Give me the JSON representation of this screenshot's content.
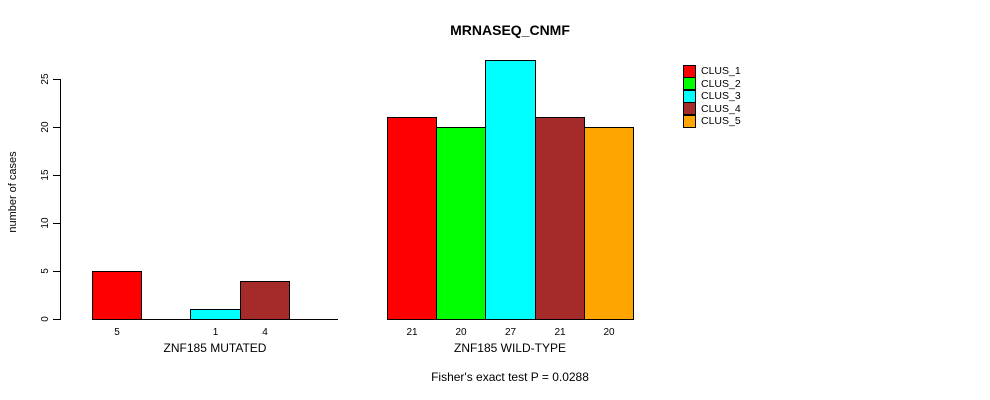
{
  "title": "MRNASEQ_CNMF",
  "caption": "Fisher's exact test P = 0.0288",
  "y_axis": {
    "label": "number of cases",
    "ticks": [
      0,
      5,
      10,
      15,
      20,
      25
    ]
  },
  "legend": {
    "items": [
      {
        "label": "CLUS_1",
        "color": "#ff0000"
      },
      {
        "label": "CLUS_2",
        "color": "#00ff00"
      },
      {
        "label": "CLUS_3",
        "color": "#00ffff"
      },
      {
        "label": "CLUS_4",
        "color": "#a52a2a"
      },
      {
        "label": "CLUS_5",
        "color": "#ffa500"
      }
    ]
  },
  "chart_data": {
    "type": "bar",
    "title": "MRNASEQ_CNMF",
    "ylabel": "number of cases",
    "ylim": [
      0,
      27
    ],
    "yticks": [
      0,
      5,
      10,
      15,
      20,
      25
    ],
    "grid": false,
    "legend_position": "right",
    "categories": [
      "CLUS_1",
      "CLUS_2",
      "CLUS_3",
      "CLUS_4",
      "CLUS_5"
    ],
    "colors": [
      "#ff0000",
      "#00ff00",
      "#00ffff",
      "#a52a2a",
      "#ffa500"
    ],
    "panels": [
      {
        "xlabel": "ZNF185 MUTATED",
        "values": [
          5,
          0,
          1,
          4,
          0
        ],
        "bar_labels": [
          "5",
          "",
          "1",
          "4",
          ""
        ]
      },
      {
        "xlabel": "ZNF185 WILD-TYPE",
        "values": [
          21,
          20,
          27,
          21,
          20
        ],
        "bar_labels": [
          "21",
          "20",
          "27",
          "21",
          "20"
        ]
      }
    ],
    "annotation": "Fisher's exact test P = 0.0288"
  }
}
